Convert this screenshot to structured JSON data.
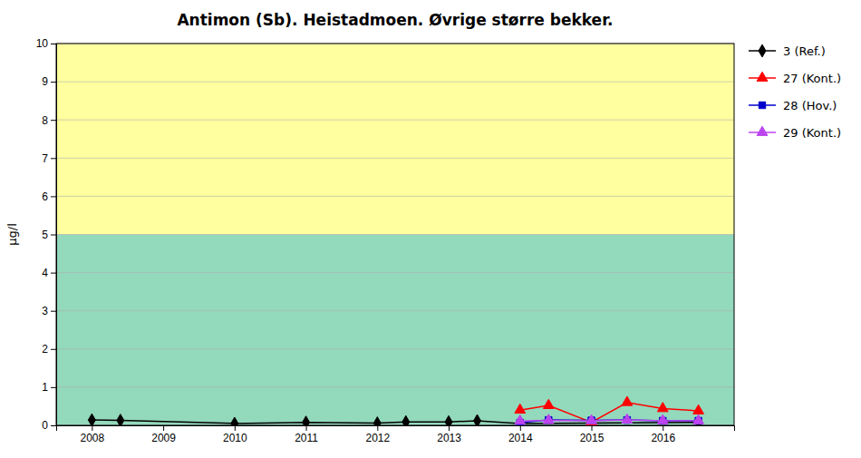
{
  "chart_data": {
    "type": "line",
    "title": "Antimon (Sb). Heistadmoen. Øvrige større bekker.",
    "ylabel": "µg/l",
    "xlim": [
      2007.5,
      2017.0
    ],
    "xticks": [
      2008,
      2009,
      2010,
      2011,
      2012,
      2013,
      2014,
      2015,
      2016
    ],
    "ylim": [
      0,
      10
    ],
    "yticks": [
      0,
      1,
      2,
      3,
      4,
      5,
      6,
      7,
      8,
      9,
      10
    ],
    "grid": true,
    "legend": "right",
    "bands": [
      {
        "from": 5,
        "to": 10,
        "color": "#FFFFA0"
      },
      {
        "from": 0,
        "to": 5,
        "color": "#93D9BC"
      }
    ],
    "series": [
      {
        "name": "3 (Ref.)",
        "color": "#000000",
        "marker": "diamond",
        "x": [
          2008.0,
          2008.4,
          2010.0,
          2011.0,
          2012.0,
          2012.4,
          2013.0,
          2013.4,
          2014.0,
          2016.5
        ],
        "values": [
          0.14,
          0.13,
          0.05,
          0.08,
          0.06,
          0.09,
          0.09,
          0.12,
          0.05,
          0.08
        ]
      },
      {
        "name": "27 (Kont.)",
        "color": "#FF0000",
        "marker": "triangle",
        "x": [
          2014.0,
          2014.4,
          2015.0,
          2015.5,
          2016.0,
          2016.5
        ],
        "values": [
          0.4,
          0.52,
          0.08,
          0.6,
          0.44,
          0.38
        ]
      },
      {
        "name": "28 (Hov.)",
        "color": "#0000CC",
        "marker": "square",
        "x": [
          2014.0,
          2014.4,
          2015.0,
          2015.5,
          2016.0,
          2016.5
        ],
        "values": [
          0.07,
          0.14,
          0.13,
          0.14,
          0.12,
          0.12
        ]
      },
      {
        "name": "29 (Kont.)",
        "color": "#BB44EE",
        "marker": "triangle",
        "x": [
          2014.0,
          2014.4,
          2015.0,
          2015.5,
          2016.0,
          2016.5
        ],
        "values": [
          0.11,
          0.13,
          0.12,
          0.14,
          0.12,
          0.12
        ]
      }
    ]
  }
}
